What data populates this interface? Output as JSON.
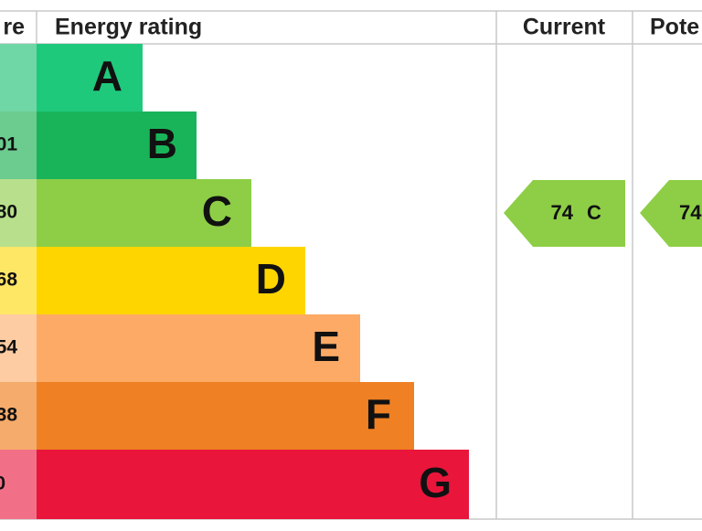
{
  "header": {
    "score": "re",
    "rating": "Energy rating",
    "current": "Current",
    "potential": "Pote"
  },
  "rows": [
    {
      "letter": "A"
    },
    {
      "score": "01",
      "letter": "B"
    },
    {
      "score": "80",
      "letter": "C"
    },
    {
      "score": "68",
      "letter": "D"
    },
    {
      "score": "54",
      "letter": "E"
    },
    {
      "score": "38",
      "letter": "F"
    },
    {
      "score": "0",
      "letter": "G"
    }
  ],
  "current": {
    "value": "74",
    "band": "C"
  },
  "potential": {
    "value": "74"
  }
}
